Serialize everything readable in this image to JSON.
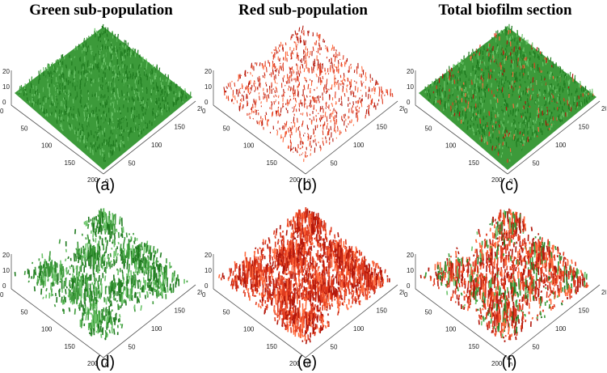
{
  "columns": [
    {
      "title": "Green sub-population"
    },
    {
      "title": "Red sub-population"
    },
    {
      "title": "Total biofilm section"
    }
  ],
  "panels": [
    {
      "caption": "(a)",
      "type": "dense",
      "colors": [
        "green"
      ]
    },
    {
      "caption": "(b)",
      "type": "sparse",
      "colors": [
        "red"
      ]
    },
    {
      "caption": "(c)",
      "type": "dense",
      "colors": [
        "green",
        "red"
      ]
    },
    {
      "caption": "(d)",
      "type": "clusters",
      "colors": [
        "green"
      ]
    },
    {
      "caption": "(e)",
      "type": "clusters",
      "colors": [
        "red"
      ]
    },
    {
      "caption": "(f)",
      "type": "clusters",
      "colors": [
        "red",
        "green"
      ]
    }
  ],
  "axes": {
    "z_ticks": [
      "20",
      "10",
      "0"
    ],
    "x_ticks": [
      "0",
      "50",
      "100",
      "150",
      "200"
    ],
    "y_ticks": [
      "0",
      "50",
      "100",
      "150",
      "200"
    ]
  },
  "colors": {
    "green_dark": "#1f7a1f",
    "green": "#3c9a3a",
    "green_light": "#6cc46a",
    "red_dark": "#b3180c",
    "red": "#e03a1e",
    "red_light": "#ff6a3d",
    "axis": "#555555"
  }
}
